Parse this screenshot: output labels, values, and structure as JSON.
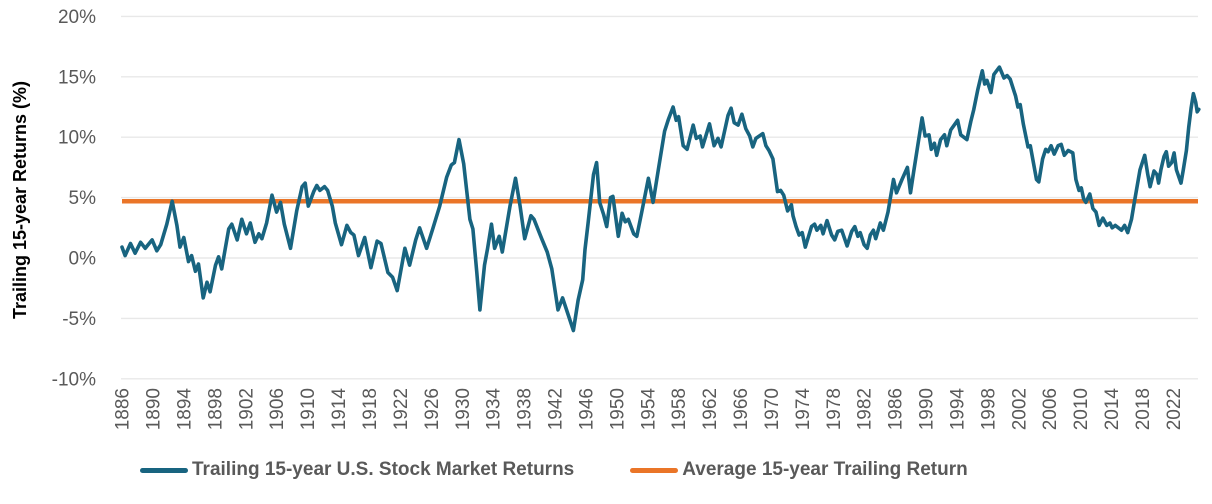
{
  "chart_data": {
    "type": "line",
    "title": "",
    "xlabel": "",
    "ylabel": "Trailing 15-year Returns (%)",
    "ylim": [
      -10,
      20
    ],
    "xlim": [
      1886,
      2025.5
    ],
    "grid": "horizontal",
    "grid_color": "#e8e8e8",
    "tick_color": "#595959",
    "axis_title_color": "#000000",
    "legend_text_color": "#595959",
    "legend_position": "bottom",
    "yticks": [
      20,
      15,
      10,
      5,
      0,
      -5,
      -10
    ],
    "ytick_labels": [
      "20%",
      "15%",
      "10%",
      "5%",
      "0%",
      "-5%",
      "-10%"
    ],
    "xticks": [
      1886,
      1890,
      1894,
      1898,
      1902,
      1906,
      1910,
      1914,
      1918,
      1922,
      1926,
      1930,
      1934,
      1938,
      1942,
      1946,
      1950,
      1954,
      1958,
      1962,
      1966,
      1970,
      1974,
      1978,
      1982,
      1986,
      1990,
      1994,
      1998,
      2002,
      2006,
      2010,
      2014,
      2018,
      2022
    ],
    "xtick_labels": [
      "1886",
      "1890",
      "1894",
      "1898",
      "1902",
      "1906",
      "1910",
      "1914",
      "1918",
      "1922",
      "1926",
      "1930",
      "1934",
      "1938",
      "1942",
      "1946",
      "1950",
      "1954",
      "1958",
      "1962",
      "1966",
      "1970",
      "1974",
      "1978",
      "1982",
      "1986",
      "1990",
      "1994",
      "1998",
      "2002",
      "2006",
      "2010",
      "2014",
      "2018",
      "2022"
    ],
    "series": [
      {
        "name": "Trailing 15-year U.S. Stock Market Returns",
        "type": "line",
        "color": "#186480",
        "stroke_width": 3.6,
        "points": [
          [
            1886.0,
            0.9
          ],
          [
            1886.4,
            0.2
          ],
          [
            1887.1,
            1.2
          ],
          [
            1887.7,
            0.4
          ],
          [
            1888.4,
            1.3
          ],
          [
            1889.0,
            0.8
          ],
          [
            1889.9,
            1.5
          ],
          [
            1890.5,
            0.6
          ],
          [
            1891.0,
            1.1
          ],
          [
            1891.8,
            2.8
          ],
          [
            1892.5,
            4.7
          ],
          [
            1893.1,
            2.7
          ],
          [
            1893.5,
            0.9
          ],
          [
            1894.0,
            1.7
          ],
          [
            1894.6,
            -0.3
          ],
          [
            1895.0,
            0.2
          ],
          [
            1895.5,
            -1.1
          ],
          [
            1895.9,
            -0.5
          ],
          [
            1896.5,
            -3.3
          ],
          [
            1897.0,
            -2.0
          ],
          [
            1897.4,
            -2.8
          ],
          [
            1898.1,
            -0.6
          ],
          [
            1898.5,
            0.1
          ],
          [
            1898.9,
            -0.9
          ],
          [
            1899.8,
            2.4
          ],
          [
            1900.2,
            2.8
          ],
          [
            1900.9,
            1.5
          ],
          [
            1901.5,
            3.2
          ],
          [
            1902.1,
            2.0
          ],
          [
            1902.6,
            2.9
          ],
          [
            1903.2,
            1.3
          ],
          [
            1903.7,
            2.0
          ],
          [
            1904.1,
            1.6
          ],
          [
            1904.7,
            2.9
          ],
          [
            1905.4,
            5.2
          ],
          [
            1906.0,
            3.8
          ],
          [
            1906.5,
            4.6
          ],
          [
            1907.0,
            2.8
          ],
          [
            1907.8,
            0.8
          ],
          [
            1908.6,
            3.9
          ],
          [
            1909.3,
            5.9
          ],
          [
            1909.7,
            6.2
          ],
          [
            1910.1,
            4.3
          ],
          [
            1910.8,
            5.5
          ],
          [
            1911.2,
            6.0
          ],
          [
            1911.6,
            5.6
          ],
          [
            1912.2,
            5.9
          ],
          [
            1912.6,
            5.6
          ],
          [
            1913.2,
            4.3
          ],
          [
            1913.6,
            2.9
          ],
          [
            1914.4,
            1.1
          ],
          [
            1915.1,
            2.7
          ],
          [
            1915.6,
            2.1
          ],
          [
            1916.0,
            1.9
          ],
          [
            1916.6,
            0.2
          ],
          [
            1917.4,
            1.7
          ],
          [
            1918.2,
            -0.8
          ],
          [
            1919.0,
            1.4
          ],
          [
            1919.5,
            1.2
          ],
          [
            1920.4,
            -1.2
          ],
          [
            1921.0,
            -1.6
          ],
          [
            1921.6,
            -2.7
          ],
          [
            1922.6,
            0.8
          ],
          [
            1923.2,
            -0.6
          ],
          [
            1924.0,
            1.5
          ],
          [
            1924.5,
            2.5
          ],
          [
            1925.4,
            0.8
          ],
          [
            1926.2,
            2.4
          ],
          [
            1927.1,
            4.3
          ],
          [
            1928.0,
            6.7
          ],
          [
            1928.6,
            7.7
          ],
          [
            1929.0,
            7.9
          ],
          [
            1929.6,
            9.8
          ],
          [
            1930.2,
            7.8
          ],
          [
            1930.6,
            5.5
          ],
          [
            1931.0,
            3.2
          ],
          [
            1931.4,
            2.4
          ],
          [
            1931.9,
            -1.2
          ],
          [
            1932.3,
            -4.3
          ],
          [
            1932.9,
            -0.6
          ],
          [
            1933.3,
            0.8
          ],
          [
            1933.8,
            2.8
          ],
          [
            1934.2,
            0.8
          ],
          [
            1934.8,
            1.8
          ],
          [
            1935.2,
            0.5
          ],
          [
            1936.2,
            4.3
          ],
          [
            1936.9,
            6.6
          ],
          [
            1937.5,
            4.3
          ],
          [
            1938.1,
            1.6
          ],
          [
            1938.9,
            3.5
          ],
          [
            1939.3,
            3.2
          ],
          [
            1940.3,
            1.6
          ],
          [
            1941.0,
            0.5
          ],
          [
            1941.6,
            -0.9
          ],
          [
            1942.4,
            -4.3
          ],
          [
            1943.0,
            -3.3
          ],
          [
            1944.4,
            -6.0
          ],
          [
            1945.0,
            -3.5
          ],
          [
            1945.6,
            -1.8
          ],
          [
            1945.9,
            0.7
          ],
          [
            1946.3,
            2.9
          ],
          [
            1947.0,
            6.9
          ],
          [
            1947.4,
            7.9
          ],
          [
            1947.8,
            4.6
          ],
          [
            1948.3,
            3.6
          ],
          [
            1948.7,
            2.6
          ],
          [
            1949.2,
            5.0
          ],
          [
            1949.5,
            5.1
          ],
          [
            1950.2,
            1.8
          ],
          [
            1950.7,
            3.7
          ],
          [
            1951.1,
            3.0
          ],
          [
            1951.5,
            3.2
          ],
          [
            1952.2,
            2.0
          ],
          [
            1952.6,
            1.8
          ],
          [
            1953.2,
            3.7
          ],
          [
            1954.1,
            6.6
          ],
          [
            1954.7,
            4.6
          ],
          [
            1955.4,
            7.4
          ],
          [
            1956.2,
            10.5
          ],
          [
            1956.7,
            11.5
          ],
          [
            1957.3,
            12.5
          ],
          [
            1957.7,
            11.4
          ],
          [
            1958.0,
            11.7
          ],
          [
            1958.6,
            9.3
          ],
          [
            1959.1,
            9.0
          ],
          [
            1959.9,
            11.0
          ],
          [
            1960.3,
            9.9
          ],
          [
            1960.8,
            10.1
          ],
          [
            1961.1,
            9.2
          ],
          [
            1962.0,
            11.1
          ],
          [
            1962.6,
            9.3
          ],
          [
            1963.1,
            9.9
          ],
          [
            1963.5,
            9.2
          ],
          [
            1964.4,
            11.8
          ],
          [
            1964.8,
            12.4
          ],
          [
            1965.2,
            11.2
          ],
          [
            1965.7,
            11.0
          ],
          [
            1966.2,
            11.9
          ],
          [
            1966.7,
            10.7
          ],
          [
            1967.2,
            10.1
          ],
          [
            1967.6,
            9.2
          ],
          [
            1968.0,
            9.9
          ],
          [
            1968.9,
            10.3
          ],
          [
            1969.3,
            9.3
          ],
          [
            1969.7,
            8.9
          ],
          [
            1970.2,
            8.2
          ],
          [
            1970.8,
            5.5
          ],
          [
            1971.2,
            5.6
          ],
          [
            1971.6,
            5.2
          ],
          [
            1972.1,
            3.9
          ],
          [
            1972.6,
            4.4
          ],
          [
            1972.8,
            3.5
          ],
          [
            1973.2,
            2.6
          ],
          [
            1973.6,
            1.9
          ],
          [
            1974.0,
            2.1
          ],
          [
            1974.4,
            0.9
          ],
          [
            1975.2,
            2.6
          ],
          [
            1975.6,
            2.8
          ],
          [
            1975.9,
            2.3
          ],
          [
            1976.4,
            2.7
          ],
          [
            1976.7,
            2.0
          ],
          [
            1977.2,
            3.1
          ],
          [
            1977.8,
            1.9
          ],
          [
            1978.2,
            1.5
          ],
          [
            1978.6,
            2.2
          ],
          [
            1979.1,
            2.3
          ],
          [
            1979.8,
            1.0
          ],
          [
            1980.4,
            2.2
          ],
          [
            1980.8,
            2.6
          ],
          [
            1981.2,
            1.8
          ],
          [
            1981.5,
            2.1
          ],
          [
            1982.0,
            1.1
          ],
          [
            1982.4,
            0.8
          ],
          [
            1982.8,
            1.9
          ],
          [
            1983.2,
            2.3
          ],
          [
            1983.5,
            1.6
          ],
          [
            1984.1,
            2.9
          ],
          [
            1984.5,
            2.3
          ],
          [
            1985.1,
            3.8
          ],
          [
            1985.8,
            6.5
          ],
          [
            1986.2,
            5.4
          ],
          [
            1986.9,
            6.5
          ],
          [
            1987.6,
            7.5
          ],
          [
            1988.0,
            5.4
          ],
          [
            1988.4,
            7.1
          ],
          [
            1989.5,
            11.6
          ],
          [
            1989.9,
            10.1
          ],
          [
            1990.4,
            10.2
          ],
          [
            1990.7,
            9.0
          ],
          [
            1991.1,
            9.5
          ],
          [
            1991.4,
            8.5
          ],
          [
            1991.9,
            9.8
          ],
          [
            1992.4,
            10.2
          ],
          [
            1992.7,
            9.3
          ],
          [
            1993.2,
            10.6
          ],
          [
            1994.1,
            11.4
          ],
          [
            1994.5,
            10.2
          ],
          [
            1995.3,
            9.8
          ],
          [
            1995.8,
            11.3
          ],
          [
            1996.2,
            12.3
          ],
          [
            1996.7,
            13.9
          ],
          [
            1997.3,
            15.5
          ],
          [
            1997.6,
            14.4
          ],
          [
            1997.9,
            14.7
          ],
          [
            1998.4,
            13.7
          ],
          [
            1998.8,
            15.2
          ],
          [
            1999.5,
            15.8
          ],
          [
            2000.1,
            14.9
          ],
          [
            2000.5,
            15.1
          ],
          [
            2000.9,
            14.8
          ],
          [
            2001.3,
            14.0
          ],
          [
            2001.6,
            13.4
          ],
          [
            2001.9,
            12.5
          ],
          [
            2002.2,
            12.7
          ],
          [
            2002.6,
            11.1
          ],
          [
            2003.2,
            9.2
          ],
          [
            2003.5,
            9.3
          ],
          [
            2004.3,
            6.5
          ],
          [
            2004.6,
            6.3
          ],
          [
            2005.1,
            8.2
          ],
          [
            2005.5,
            9.0
          ],
          [
            2005.8,
            8.8
          ],
          [
            2006.2,
            9.3
          ],
          [
            2006.6,
            8.6
          ],
          [
            2007.1,
            9.3
          ],
          [
            2007.5,
            9.4
          ],
          [
            2007.9,
            8.5
          ],
          [
            2008.4,
            8.9
          ],
          [
            2009.0,
            8.7
          ],
          [
            2009.4,
            6.5
          ],
          [
            2009.8,
            5.6
          ],
          [
            2010.1,
            5.8
          ],
          [
            2010.4,
            4.9
          ],
          [
            2010.7,
            4.6
          ],
          [
            2011.2,
            5.3
          ],
          [
            2011.6,
            4.1
          ],
          [
            2012.0,
            3.8
          ],
          [
            2012.4,
            2.7
          ],
          [
            2012.9,
            3.3
          ],
          [
            2013.4,
            2.7
          ],
          [
            2013.8,
            2.9
          ],
          [
            2014.1,
            2.5
          ],
          [
            2014.5,
            2.7
          ],
          [
            2015.3,
            2.3
          ],
          [
            2015.7,
            2.7
          ],
          [
            2016.1,
            2.1
          ],
          [
            2016.6,
            3.2
          ],
          [
            2016.9,
            4.4
          ],
          [
            2017.7,
            7.3
          ],
          [
            2018.3,
            8.5
          ],
          [
            2018.7,
            6.9
          ],
          [
            2019.0,
            5.9
          ],
          [
            2019.5,
            7.2
          ],
          [
            2019.9,
            6.9
          ],
          [
            2020.1,
            6.2
          ],
          [
            2020.4,
            7.3
          ],
          [
            2020.8,
            8.4
          ],
          [
            2021.1,
            8.8
          ],
          [
            2021.4,
            7.6
          ],
          [
            2021.8,
            7.9
          ],
          [
            2022.1,
            8.7
          ],
          [
            2022.4,
            7.3
          ],
          [
            2023.0,
            6.2
          ],
          [
            2023.3,
            7.3
          ],
          [
            2023.7,
            8.9
          ],
          [
            2024.0,
            10.8
          ],
          [
            2024.3,
            12.4
          ],
          [
            2024.6,
            13.6
          ],
          [
            2024.9,
            12.9
          ],
          [
            2025.1,
            12.1
          ],
          [
            2025.3,
            12.3
          ]
        ]
      },
      {
        "name": "Average 15-year Trailing Return",
        "type": "hline",
        "color": "#ea7528",
        "stroke_width": 4.5,
        "value": 4.7
      }
    ]
  }
}
